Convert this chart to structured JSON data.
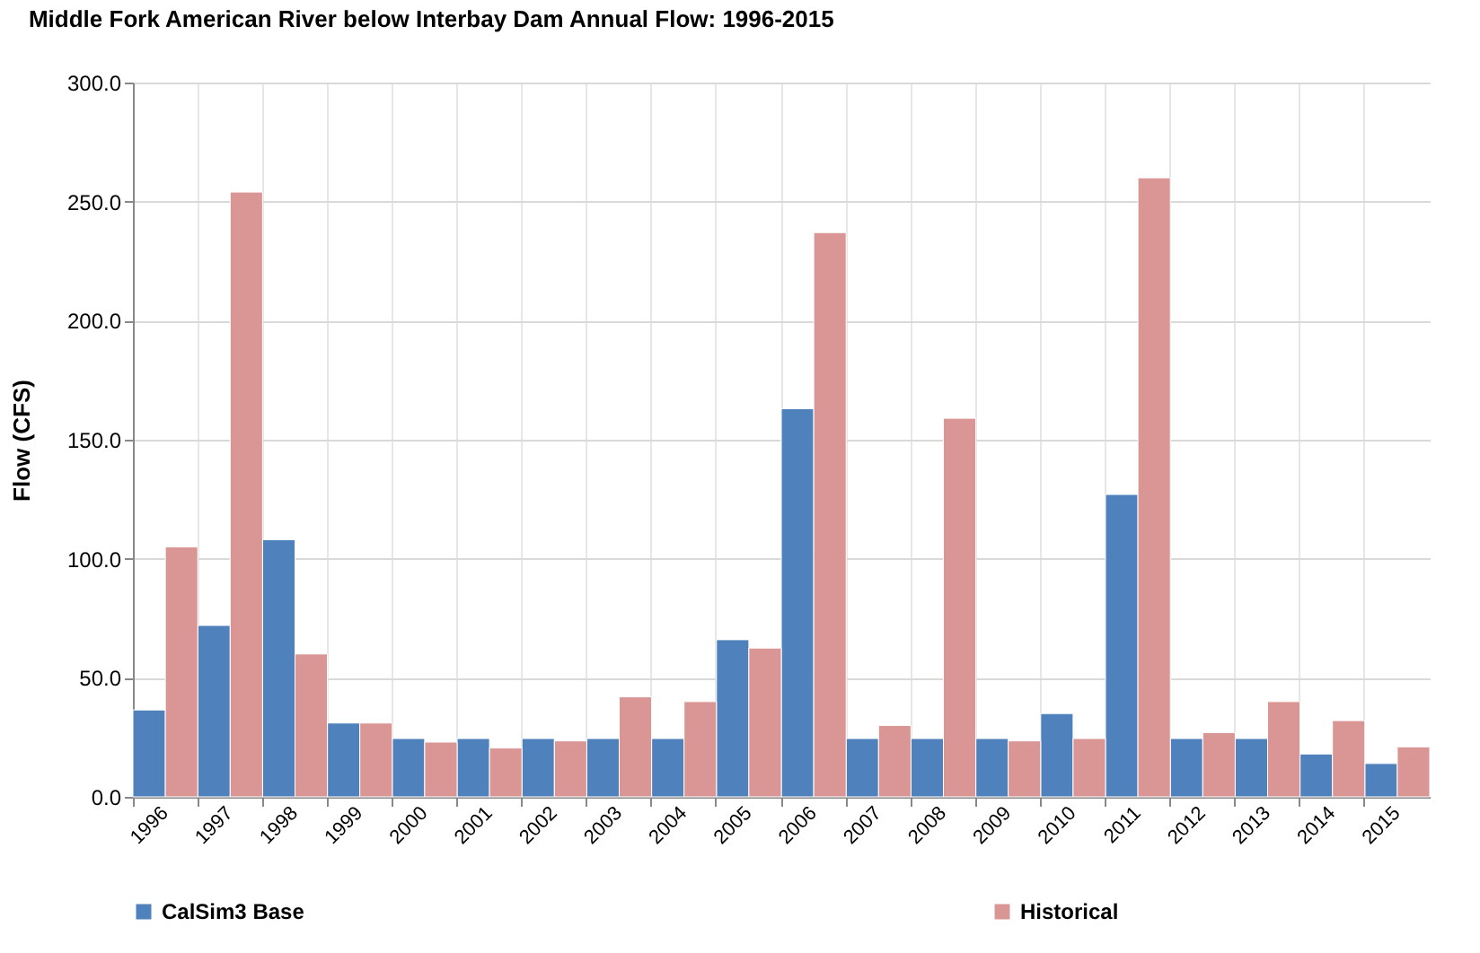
{
  "chart_data": {
    "type": "bar",
    "title": "Middle Fork American River below Interbay Dam Annual Flow: 1996-2015",
    "ylabel": "Flow (CFS)",
    "categories": [
      "1996",
      "1997",
      "1998",
      "1999",
      "2000",
      "2001",
      "2002",
      "2003",
      "2004",
      "2005",
      "2006",
      "2007",
      "2008",
      "2009",
      "2010",
      "2011",
      "2012",
      "2013",
      "2014",
      "2015"
    ],
    "series": [
      {
        "name": "CalSim3 Base",
        "color": "#4f81bd",
        "values": [
          36.5,
          72,
          108,
          31,
          24.5,
          24.5,
          24.5,
          24.5,
          24.5,
          66,
          163,
          24.5,
          24.5,
          24.5,
          35,
          127,
          24.5,
          24.5,
          18,
          14
        ]
      },
      {
        "name": "Historical",
        "color": "#d99694",
        "values": [
          105,
          254,
          60,
          31,
          23,
          20.5,
          23.5,
          42,
          40,
          62.5,
          237,
          30,
          159,
          23.5,
          24.5,
          260,
          27,
          40,
          32,
          21
        ]
      }
    ],
    "ylim": [
      0,
      300
    ],
    "yticks": [
      {
        "value": 0,
        "label": "0.0"
      },
      {
        "value": 50,
        "label": "50.0"
      },
      {
        "value": 100,
        "label": "100.0"
      },
      {
        "value": 150,
        "label": "150.0"
      },
      {
        "value": 200,
        "label": "200.0"
      },
      {
        "value": 250,
        "label": "250.0"
      },
      {
        "value": 300,
        "label": "300.0"
      }
    ],
    "grid": true,
    "legend": "bottom"
  }
}
